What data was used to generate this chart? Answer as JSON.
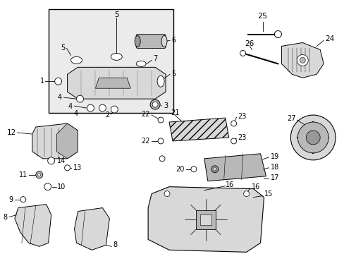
{
  "background_color": "#ffffff",
  "line_color": "#000000",
  "fill_light": "#d8d8d8",
  "fill_mid": "#b8b8b8",
  "fill_dark": "#989898",
  "label_fontsize": 7,
  "box_fill": "#e8e8e8"
}
